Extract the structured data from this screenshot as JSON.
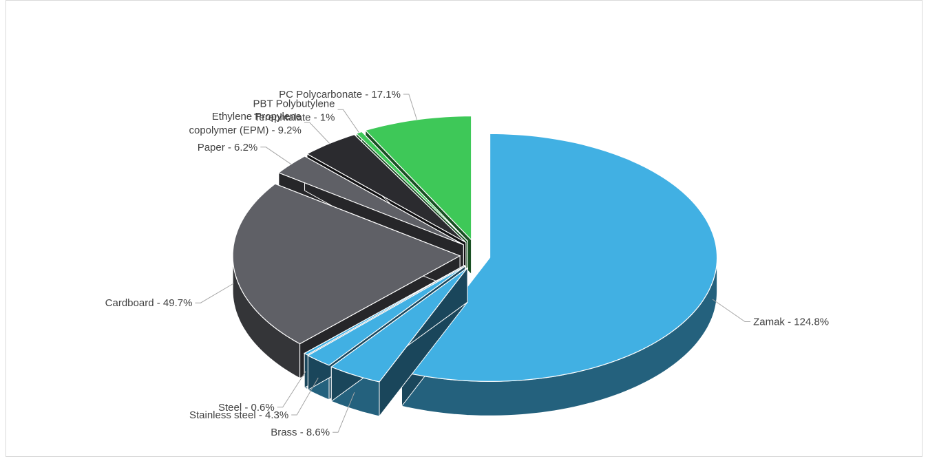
{
  "chart_data": {
    "type": "pie3d",
    "labels": [
      "Zamak - 124.8%",
      "Brass - 8.6%",
      "Stainless steel - 4.3%",
      "Steel - 0.6%",
      "Cardboard - 49.7%",
      "Paper - 6.2%",
      "Ethylene Propylene copolymer (EPM) - 9.2%",
      "PBT Polybutylene Terephtalate - 1%",
      "PC Polycarbonate - 17.1%"
    ],
    "values": [
      124.8,
      8.6,
      4.3,
      0.6,
      49.7,
      6.2,
      9.2,
      1,
      17.1
    ],
    "colors": [
      "#41b0e3",
      "#41b0e3",
      "#41b0e3",
      "#41b0e3",
      "#5f6066",
      "#5f6066",
      "#2b2b2f",
      "#3ec858",
      "#3ec858"
    ]
  }
}
